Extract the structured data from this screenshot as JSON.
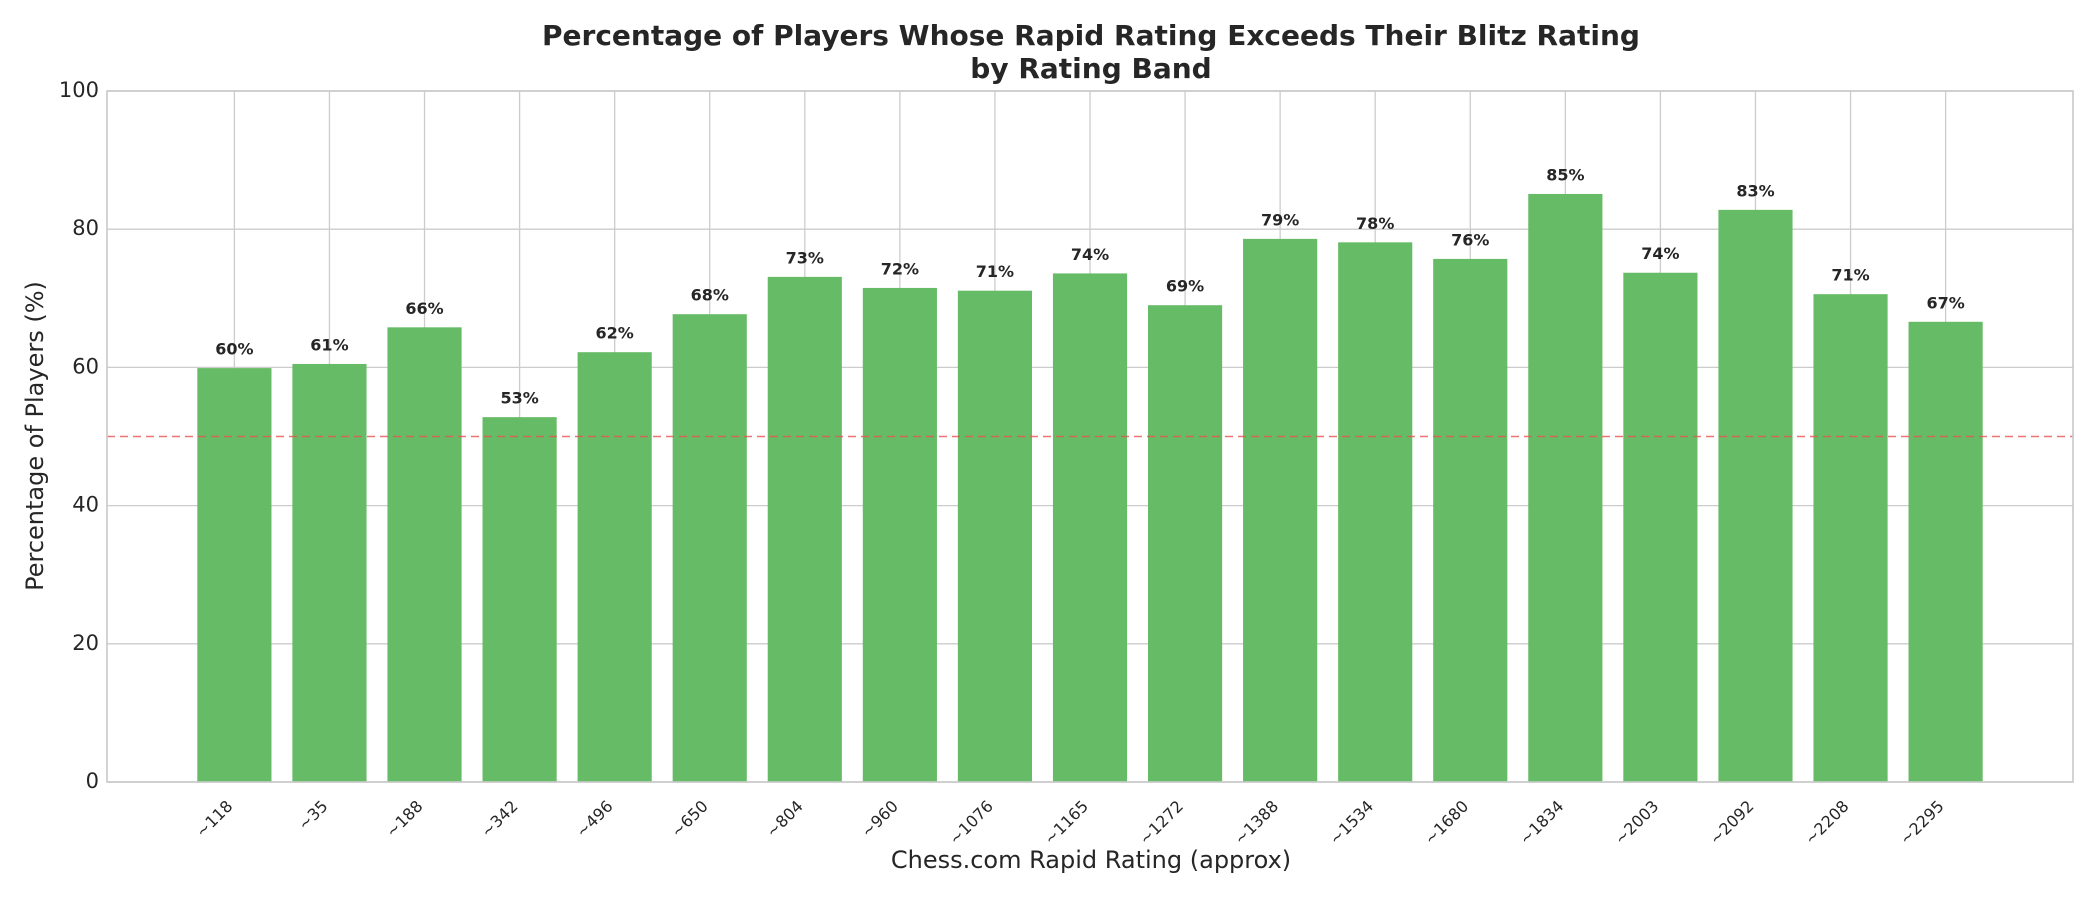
{
  "chart_data": {
    "type": "bar",
    "title": [
      "Percentage of Players Whose Rapid Rating Exceeds Their Blitz Rating",
      "by Rating Band"
    ],
    "xlabel": "Chess.com Rapid Rating (approx)",
    "ylabel": "Percentage of Players (%)",
    "categories": [
      "~118",
      "~35",
      "~188",
      "~342",
      "~496",
      "~650",
      "~804",
      "~960",
      "~1076",
      "~1165",
      "~1272",
      "~1388",
      "~1534",
      "~1680",
      "~1834",
      "~2003",
      "~2092",
      "~2208",
      "~2295"
    ],
    "values": [
      59.9,
      60.5,
      65.8,
      52.8,
      62.2,
      67.7,
      73.1,
      71.5,
      71.1,
      73.6,
      69.0,
      78.6,
      78.1,
      75.7,
      85.1,
      73.7,
      82.8,
      70.6,
      66.6
    ],
    "value_labels": [
      "60%",
      "61%",
      "66%",
      "53%",
      "62%",
      "68%",
      "73%",
      "72%",
      "71%",
      "74%",
      "69%",
      "79%",
      "78%",
      "76%",
      "85%",
      "74%",
      "83%",
      "71%",
      "67%"
    ],
    "color": "#66bb66",
    "ylim": [
      0,
      100
    ],
    "yticks": [
      0,
      20,
      40,
      60,
      80,
      100
    ],
    "grid": true,
    "reference_line": {
      "value": 50,
      "color": "#e8534f"
    }
  }
}
